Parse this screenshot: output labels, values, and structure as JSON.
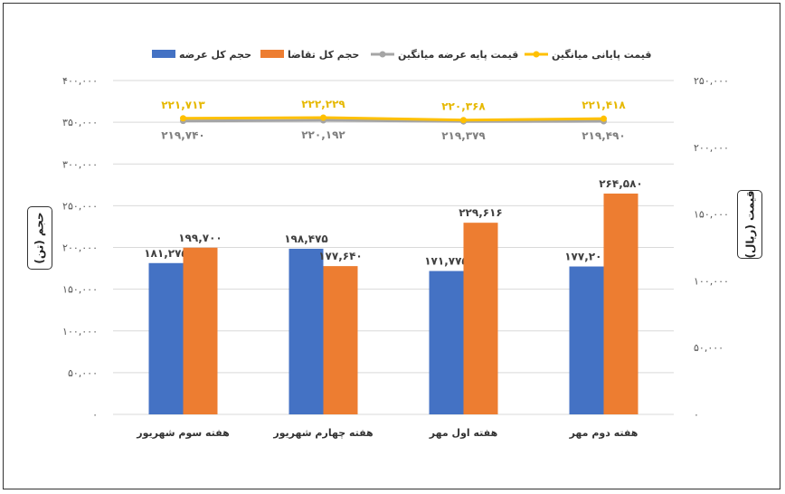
{
  "chart_data": {
    "type": "bar",
    "categories": [
      "هفته سوم شهریور",
      "هفته چهارم شهریور",
      "هفته اول مهر",
      "هفته دوم مهر"
    ],
    "series": [
      {
        "name": "حجم کل عرضه",
        "kind": "bar",
        "axis": "left",
        "color": "#4472C4",
        "values": [
          181275,
          198475,
          171775,
          177200
        ],
        "labels": [
          "۱۸۱,۲۷۵",
          "۱۹۸,۴۷۵",
          "۱۷۱,۷۷۵",
          "۱۷۷,۲۰۰"
        ]
      },
      {
        "name": "حجم کل تقاضا",
        "kind": "bar",
        "axis": "left",
        "color": "#ED7D31",
        "values": [
          199700,
          177640,
          229616,
          264580
        ],
        "labels": [
          "۱۹۹,۷۰۰",
          "۱۷۷,۶۴۰",
          "۲۲۹,۶۱۶",
          "۲۶۴,۵۸۰"
        ]
      },
      {
        "name": "قیمت پایه عرضه میانگین",
        "kind": "line",
        "axis": "right",
        "color": "#A5A5A5",
        "values": [
          219740,
          220192,
          219379,
          219490
        ],
        "labels": [
          "۲۱۹,۷۴۰",
          "۲۲۰,۱۹۲",
          "۲۱۹,۳۷۹",
          "۲۱۹,۴۹۰"
        ]
      },
      {
        "name": "قیمت پایانی میانگین",
        "kind": "line",
        "axis": "right",
        "color": "#FFC000",
        "values": [
          221713,
          222229,
          220368,
          221418
        ],
        "labels": [
          "۲۲۱,۷۱۳",
          "۲۲۲,۲۲۹",
          "۲۲۰,۳۶۸",
          "۲۲۱,۴۱۸"
        ]
      }
    ],
    "ylabel": "حجم (تن)",
    "y2label": "قیمت (ریال)",
    "ylim": [
      0,
      400000
    ],
    "y2lim": [
      0,
      250000
    ],
    "yticks": [
      0,
      50000,
      100000,
      150000,
      200000,
      250000,
      300000,
      350000,
      400000
    ],
    "yticklabels": [
      "۰",
      "۵۰,۰۰۰",
      "۱۰۰,۰۰۰",
      "۱۵۰,۰۰۰",
      "۲۰۰,۰۰۰",
      "۲۵۰,۰۰۰",
      "۳۰۰,۰۰۰",
      "۳۵۰,۰۰۰",
      "۴۰۰,۰۰۰"
    ],
    "y2ticks": [
      0,
      50000,
      100000,
      150000,
      200000,
      250000
    ],
    "y2ticklabels": [
      "۰",
      "۵۰,۰۰۰",
      "۱۰۰,۰۰۰",
      "۱۵۰,۰۰۰",
      "۲۰۰,۰۰۰",
      "۲۵۰,۰۰۰"
    ],
    "grid": true,
    "legend_position": "top"
  }
}
